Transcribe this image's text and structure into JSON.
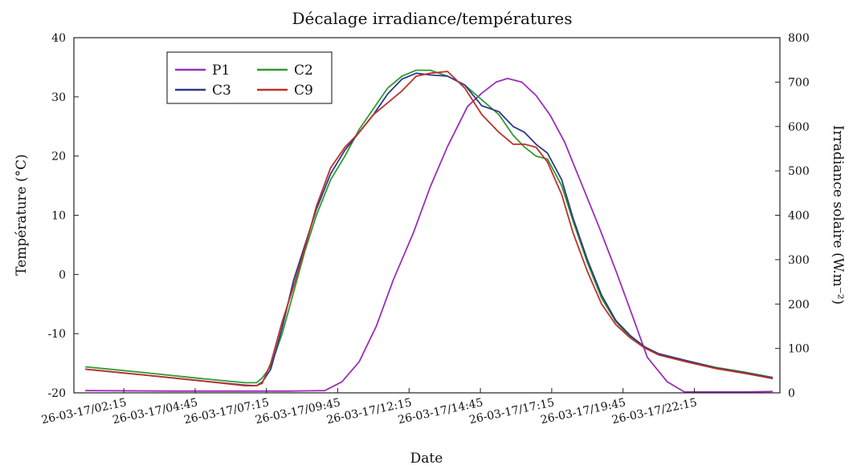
{
  "chart_data": {
    "type": "line",
    "title": "Décalage irradiance/températures",
    "xlabel": "Date",
    "ylabel": "Température (°C)",
    "y2label": "Irradiance solaire (W.m⁻²)",
    "ylim": [
      -20,
      40
    ],
    "y2lim": [
      0,
      800
    ],
    "yticks": [
      -20,
      -10,
      0,
      10,
      20,
      30,
      40
    ],
    "y2ticks": [
      0,
      100,
      200,
      300,
      400,
      500,
      600,
      700,
      800
    ],
    "xticks": [
      "26-03-17/02:15",
      "26-03-17/04:45",
      "26-03-17/07:15",
      "26-03-17/09:45",
      "26-03-17/12:15",
      "26-03-17/14:45",
      "26-03-17/17:15",
      "26-03-17/19:45",
      "26-03-17/22:15"
    ],
    "xtick_hours": [
      2.25,
      4.75,
      7.25,
      9.75,
      12.25,
      14.75,
      17.25,
      19.75,
      22.25
    ],
    "xlim_hours": [
      0.5,
      25.25
    ],
    "x_unit": "heure du 26-03-17",
    "grid": false,
    "legend_position": "top-left",
    "series": [
      {
        "name": "P1",
        "axis": "right",
        "color": "#9a2fb8",
        "x": [
          0.9,
          4.0,
          6.0,
          8.0,
          9.3,
          9.9,
          10.5,
          11.1,
          11.7,
          12.4,
          13.0,
          13.6,
          14.3,
          14.8,
          15.3,
          15.7,
          16.2,
          16.7,
          17.2,
          17.7,
          18.3,
          18.9,
          19.5,
          20.1,
          20.6,
          21.3,
          21.9,
          24.0,
          25.0
        ],
        "y": [
          5,
          4,
          4,
          4,
          5,
          25,
          70,
          150,
          255,
          360,
          465,
          555,
          645,
          675,
          700,
          708,
          700,
          670,
          625,
          565,
          470,
          375,
          275,
          170,
          80,
          25,
          2,
          2,
          3
        ]
      },
      {
        "name": "C2",
        "axis": "left",
        "color": "#2f9a2f",
        "x": [
          0.9,
          3.0,
          5.0,
          6.5,
          6.9,
          7.1,
          7.4,
          7.8,
          8.2,
          8.6,
          9.0,
          9.5,
          10.0,
          10.5,
          11.0,
          11.5,
          12.0,
          12.5,
          13.0,
          13.6,
          14.2,
          14.8,
          15.4,
          15.9,
          16.3,
          16.7,
          17.1,
          17.6,
          18.0,
          18.5,
          19.0,
          19.5,
          20.0,
          20.5,
          21.0,
          22.0,
          23.0,
          24.0,
          25.0
        ],
        "y": [
          -15.6,
          -16.6,
          -17.6,
          -18.3,
          -18.3,
          -17.5,
          -15.5,
          -10.0,
          -3.0,
          4.0,
          10.0,
          16.0,
          20.0,
          24.5,
          28.0,
          31.5,
          33.5,
          34.5,
          34.5,
          33.5,
          32.0,
          29.5,
          27.0,
          23.5,
          21.5,
          20.0,
          19.5,
          15.0,
          9.0,
          2.0,
          -4.0,
          -8.0,
          -10.5,
          -12.3,
          -13.4,
          -14.6,
          -15.7,
          -16.5,
          -17.4
        ]
      },
      {
        "name": "C3",
        "axis": "left",
        "color": "#2a3a8c",
        "x": [
          0.9,
          3.0,
          5.0,
          6.5,
          6.9,
          7.1,
          7.4,
          7.8,
          8.2,
          8.6,
          9.0,
          9.5,
          10.0,
          10.5,
          11.0,
          11.5,
          12.0,
          12.5,
          13.0,
          13.6,
          14.2,
          14.8,
          15.4,
          15.9,
          16.3,
          16.7,
          17.1,
          17.6,
          18.0,
          18.5,
          19.0,
          19.5,
          20.0,
          20.5,
          21.0,
          22.0,
          23.0,
          24.0,
          25.0
        ],
        "y": [
          -16.0,
          -17.0,
          -18.0,
          -18.7,
          -18.8,
          -18.2,
          -16.0,
          -9.0,
          -1.0,
          5.0,
          11.0,
          17.0,
          21.0,
          24.0,
          27.0,
          30.5,
          33.0,
          34.0,
          33.7,
          33.5,
          32.0,
          28.5,
          27.5,
          25.0,
          24.0,
          22.0,
          20.5,
          16.0,
          9.5,
          2.5,
          -3.5,
          -7.8,
          -10.3,
          -12.2,
          -13.4,
          -14.6,
          -15.8,
          -16.6,
          -17.5
        ]
      },
      {
        "name": "C9",
        "axis": "left",
        "color": "#c0302a",
        "x": [
          0.9,
          3.0,
          5.0,
          6.5,
          6.9,
          7.1,
          7.4,
          7.8,
          8.2,
          8.6,
          9.0,
          9.5,
          10.0,
          10.5,
          11.0,
          11.5,
          12.0,
          12.5,
          13.0,
          13.6,
          14.2,
          14.8,
          15.4,
          15.9,
          16.3,
          16.7,
          17.1,
          17.6,
          18.0,
          18.5,
          19.0,
          19.5,
          20.0,
          20.5,
          21.0,
          22.0,
          23.0,
          24.0,
          25.0
        ],
        "y": [
          -16.0,
          -17.0,
          -18.0,
          -18.8,
          -18.8,
          -18.4,
          -15.0,
          -8.0,
          -2.0,
          4.5,
          11.5,
          18.0,
          21.5,
          24.0,
          27.0,
          29.0,
          31.0,
          33.5,
          34.0,
          34.3,
          31.5,
          27.0,
          24.0,
          22.0,
          22.0,
          21.5,
          19.0,
          13.5,
          7.0,
          0.5,
          -5.0,
          -8.5,
          -10.7,
          -12.4,
          -13.6,
          -14.8,
          -15.9,
          -16.7,
          -17.6
        ]
      }
    ]
  }
}
